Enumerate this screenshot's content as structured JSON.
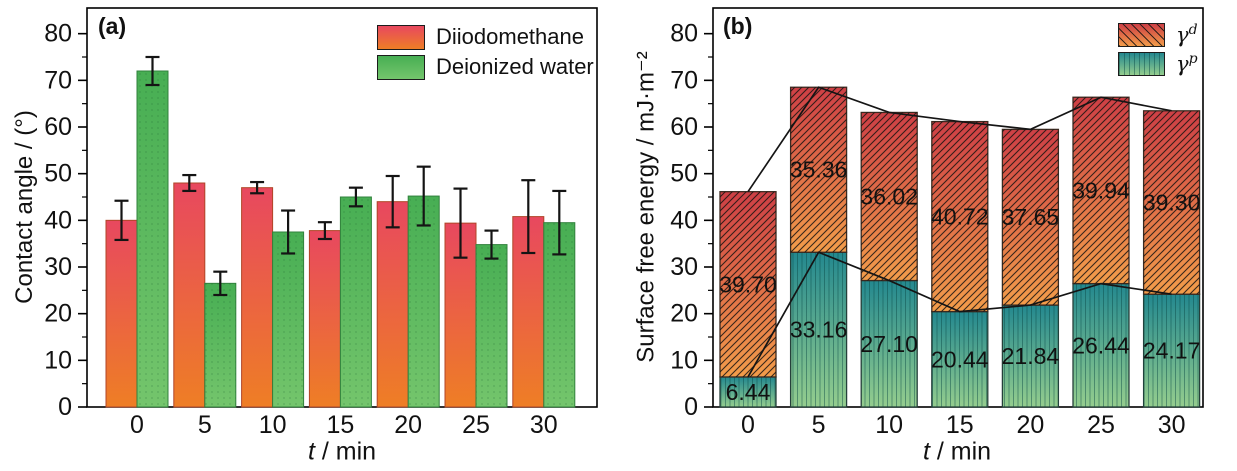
{
  "figure": {
    "background": "#ffffff",
    "panel_a": {
      "tag": "(a)",
      "ylabel": "Contact angle / (°)",
      "xlabel_var": "t",
      "xlabel_unit": " / min",
      "legend": [
        {
          "label": "Diiodomethane"
        },
        {
          "label": "Deionized water"
        }
      ]
    },
    "panel_b": {
      "tag": "(b)",
      "ylabel": "Surface free energy / mJ·m⁻²",
      "xlabel_var": "t",
      "xlabel_unit": " / min",
      "legend": [
        {
          "symbol": "γ",
          "sup": "d"
        },
        {
          "symbol": "γ",
          "sup": "p"
        }
      ]
    }
  },
  "chart_data": [
    {
      "type": "bar",
      "variant": "grouped",
      "panel": "a",
      "title": "(a)",
      "categories": [
        "0",
        "5",
        "10",
        "15",
        "20",
        "25",
        "30"
      ],
      "xlabel": "t / min",
      "ylabel": "Contact angle / (°)",
      "ylim": [
        0,
        85.5
      ],
      "yticks": [
        0,
        10,
        20,
        30,
        40,
        50,
        60,
        70,
        80
      ],
      "grid": false,
      "legend_position": "top-right",
      "series": [
        {
          "name": "Diiodomethane",
          "values": [
            40.0,
            48.0,
            47.0,
            37.8,
            44.0,
            39.4,
            40.8
          ],
          "errors": [
            4.2,
            1.7,
            1.2,
            1.8,
            5.5,
            7.4,
            7.8
          ],
          "fill_top": "#e8485f",
          "fill_bottom": "#ee7e25",
          "border": "#b04527",
          "pattern": "none"
        },
        {
          "name": "Deionized water",
          "values": [
            72.0,
            26.5,
            37.5,
            45.0,
            45.2,
            34.8,
            39.5
          ],
          "errors": [
            3.0,
            2.5,
            4.6,
            2.0,
            6.3,
            3.0,
            6.8
          ],
          "fill_top": "#47ae53",
          "fill_bottom": "#74c56c",
          "border": "#31813c",
          "pattern": "dots",
          "pattern_color": "rgba(25,95,45,0.20)"
        }
      ],
      "error_bar_color": "#141414"
    },
    {
      "type": "bar",
      "variant": "stacked",
      "panel": "b",
      "title": "(b)",
      "categories": [
        "0",
        "5",
        "10",
        "15",
        "20",
        "25",
        "30"
      ],
      "xlabel": "t / min",
      "ylabel": "Surface free energy / mJ·m⁻²",
      "ylim": [
        0,
        85.5
      ],
      "yticks": [
        0,
        10,
        20,
        30,
        40,
        50,
        60,
        70,
        80
      ],
      "grid": false,
      "legend_position": "top-right",
      "value_labels": true,
      "series": [
        {
          "name": "γp",
          "values": [
            6.44,
            33.16,
            27.1,
            20.44,
            21.84,
            26.44,
            24.17
          ],
          "fill_top": "#23888f",
          "fill_bottom": "#94cd8e",
          "border": "#26403a",
          "pattern": "vertical",
          "pattern_color": "rgba(8,70,66,0.45)"
        },
        {
          "name": "γd",
          "values": [
            39.7,
            35.36,
            36.02,
            40.72,
            37.65,
            39.94,
            39.3
          ],
          "fill_top": "#ce3f45",
          "fill_bottom": "#f29c4a",
          "border": "#3c2a20",
          "pattern": "diagonal",
          "pattern_color": "rgba(25,20,18,0.85)"
        }
      ],
      "lines": [
        {
          "name": "total-surface-energy",
          "values": [
            46.14,
            68.52,
            63.12,
            61.16,
            59.49,
            66.38,
            63.47
          ],
          "color": "#151515"
        },
        {
          "name": "gamma-p-component",
          "values": [
            6.44,
            33.16,
            27.1,
            20.44,
            21.84,
            26.44,
            24.17
          ],
          "color": "#151515"
        }
      ]
    }
  ]
}
